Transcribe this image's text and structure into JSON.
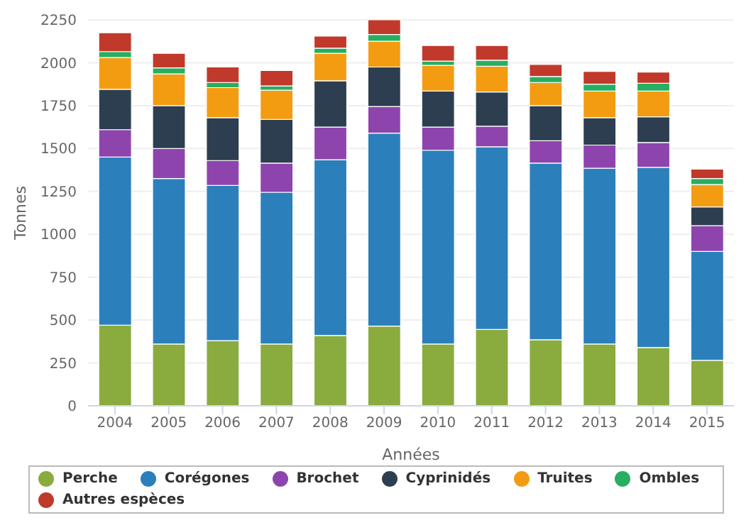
{
  "chart_data": {
    "type": "bar",
    "stacked": true,
    "xlabel": "Années",
    "ylabel": "Tonnes",
    "categories": [
      "2004",
      "2005",
      "2006",
      "2007",
      "2008",
      "2009",
      "2010",
      "2011",
      "2012",
      "2013",
      "2014",
      "2015"
    ],
    "series": [
      {
        "name": "Perche",
        "color": "#8aab3e",
        "values": [
          470,
          360,
          380,
          360,
          410,
          465,
          360,
          445,
          385,
          360,
          340,
          265
        ]
      },
      {
        "name": "Corégones",
        "color": "#2b80bb",
        "values": [
          980,
          965,
          905,
          885,
          1025,
          1125,
          1130,
          1065,
          1030,
          1025,
          1050,
          635
        ]
      },
      {
        "name": "Brochet",
        "color": "#8e44ad",
        "values": [
          160,
          175,
          145,
          170,
          190,
          155,
          135,
          120,
          130,
          135,
          145,
          150
        ]
      },
      {
        "name": "Cyprinidés",
        "color": "#2c3e50",
        "values": [
          235,
          250,
          250,
          255,
          270,
          230,
          210,
          200,
          205,
          160,
          150,
          110
        ]
      },
      {
        "name": "Truites",
        "color": "#f39c12",
        "values": [
          185,
          185,
          175,
          170,
          160,
          150,
          150,
          150,
          135,
          155,
          150,
          130
        ]
      },
      {
        "name": "Ombles",
        "color": "#27ae60",
        "values": [
          35,
          35,
          30,
          25,
          30,
          40,
          25,
          35,
          35,
          40,
          45,
          35
        ]
      },
      {
        "name": "Autres espèces",
        "color": "#c0392b",
        "values": [
          110,
          85,
          90,
          90,
          70,
          85,
          90,
          85,
          70,
          75,
          65,
          55
        ]
      }
    ],
    "ylim": [
      0,
      2250
    ],
    "yticks": [
      0,
      250,
      500,
      750,
      1000,
      1250,
      1500,
      1750,
      2000,
      2250
    ],
    "grid": "y",
    "legend": "bottom"
  }
}
